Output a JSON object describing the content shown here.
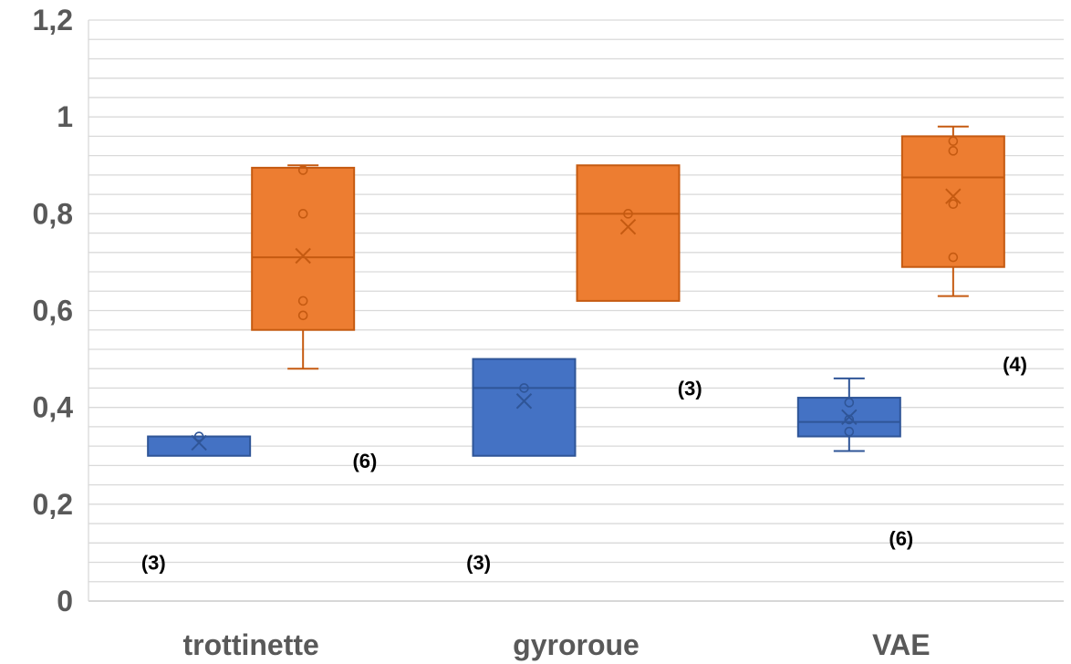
{
  "chart_data": {
    "type": "box",
    "ylim": [
      0,
      1.2
    ],
    "yticks": [
      {
        "value": 0,
        "label": "0"
      },
      {
        "value": 0.2,
        "label": "0,2"
      },
      {
        "value": 0.4,
        "label": "0,4"
      },
      {
        "value": 0.6,
        "label": "0,6"
      },
      {
        "value": 0.8,
        "label": "0,8"
      },
      {
        "value": 1,
        "label": "1"
      },
      {
        "value": 1.2,
        "label": "1,2"
      }
    ],
    "minor_gridline_step": 0.04,
    "grid": true,
    "categories": [
      "trottinette",
      "gyroroue",
      "VAE"
    ],
    "series": [
      {
        "color": "#4472C4",
        "stroke": "#2F5597",
        "boxes": [
          {
            "category": "trottinette",
            "min": 0.3,
            "q1": 0.3,
            "median": 0.34,
            "q3": 0.34,
            "max": 0.34,
            "mean": 0.327,
            "points": [
              0.34
            ]
          },
          {
            "category": "gyroroue",
            "min": 0.3,
            "q1": 0.3,
            "median": 0.44,
            "q3": 0.5,
            "max": 0.5,
            "mean": 0.413,
            "points": [
              0.44
            ]
          },
          {
            "category": "VAE",
            "min": 0.31,
            "q1": 0.34,
            "median": 0.37,
            "q3": 0.42,
            "max": 0.46,
            "mean": 0.38,
            "points": [
              0.41,
              0.375,
              0.35
            ]
          }
        ]
      },
      {
        "color": "#ED7D31",
        "stroke": "#C55A11",
        "boxes": [
          {
            "category": "trottinette",
            "min": 0.48,
            "q1": 0.56,
            "median": 0.71,
            "q3": 0.895,
            "max": 0.9,
            "mean": 0.713,
            "points": [
              0.89,
              0.8,
              0.62,
              0.59
            ]
          },
          {
            "category": "gyroroue",
            "min": 0.62,
            "q1": 0.62,
            "median": 0.8,
            "q3": 0.9,
            "max": 0.9,
            "mean": 0.773,
            "points": [
              0.8
            ]
          },
          {
            "category": "VAE",
            "min": 0.63,
            "q1": 0.69,
            "median": 0.875,
            "q3": 0.96,
            "max": 0.98,
            "mean": 0.836,
            "points": [
              0.95,
              0.93,
              0.82,
              0.71
            ]
          }
        ]
      }
    ],
    "annotations": [
      {
        "text": "(3)",
        "x_category": "trottinette",
        "offset": -0.3,
        "y": 0.08
      },
      {
        "text": "(6)",
        "x_category": "trottinette",
        "offset": 0.35,
        "y": 0.29
      },
      {
        "text": "(3)",
        "x_category": "gyroroue",
        "offset": -0.3,
        "y": 0.08
      },
      {
        "text": "(3)",
        "x_category": "gyroroue",
        "offset": 0.35,
        "y": 0.44
      },
      {
        "text": "(6)",
        "x_category": "VAE",
        "offset": 0.0,
        "y": 0.13
      },
      {
        "text": "(4)",
        "x_category": "VAE",
        "offset": 0.35,
        "y": 0.49
      }
    ]
  }
}
